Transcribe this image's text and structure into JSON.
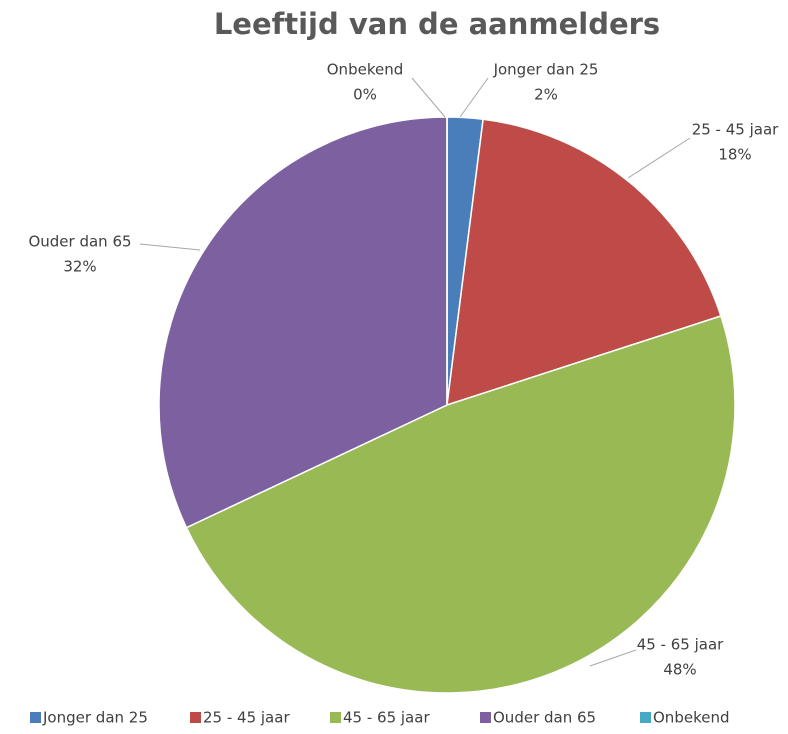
{
  "chart_data": {
    "type": "pie",
    "title": "Leeftijd van de aanmelders",
    "categories": [
      "Jonger dan 25",
      "25 - 45 jaar",
      "45 - 65 jaar",
      "Ouder dan 65",
      "Onbekend"
    ],
    "values": [
      2,
      18,
      48,
      32,
      0
    ],
    "value_labels": [
      "2%",
      "18%",
      "48%",
      "32%",
      "0%"
    ],
    "colors": [
      "#4a7ebb",
      "#be4b48",
      "#98b954",
      "#7d60a0",
      "#46aac5"
    ],
    "legend": "bottom"
  }
}
